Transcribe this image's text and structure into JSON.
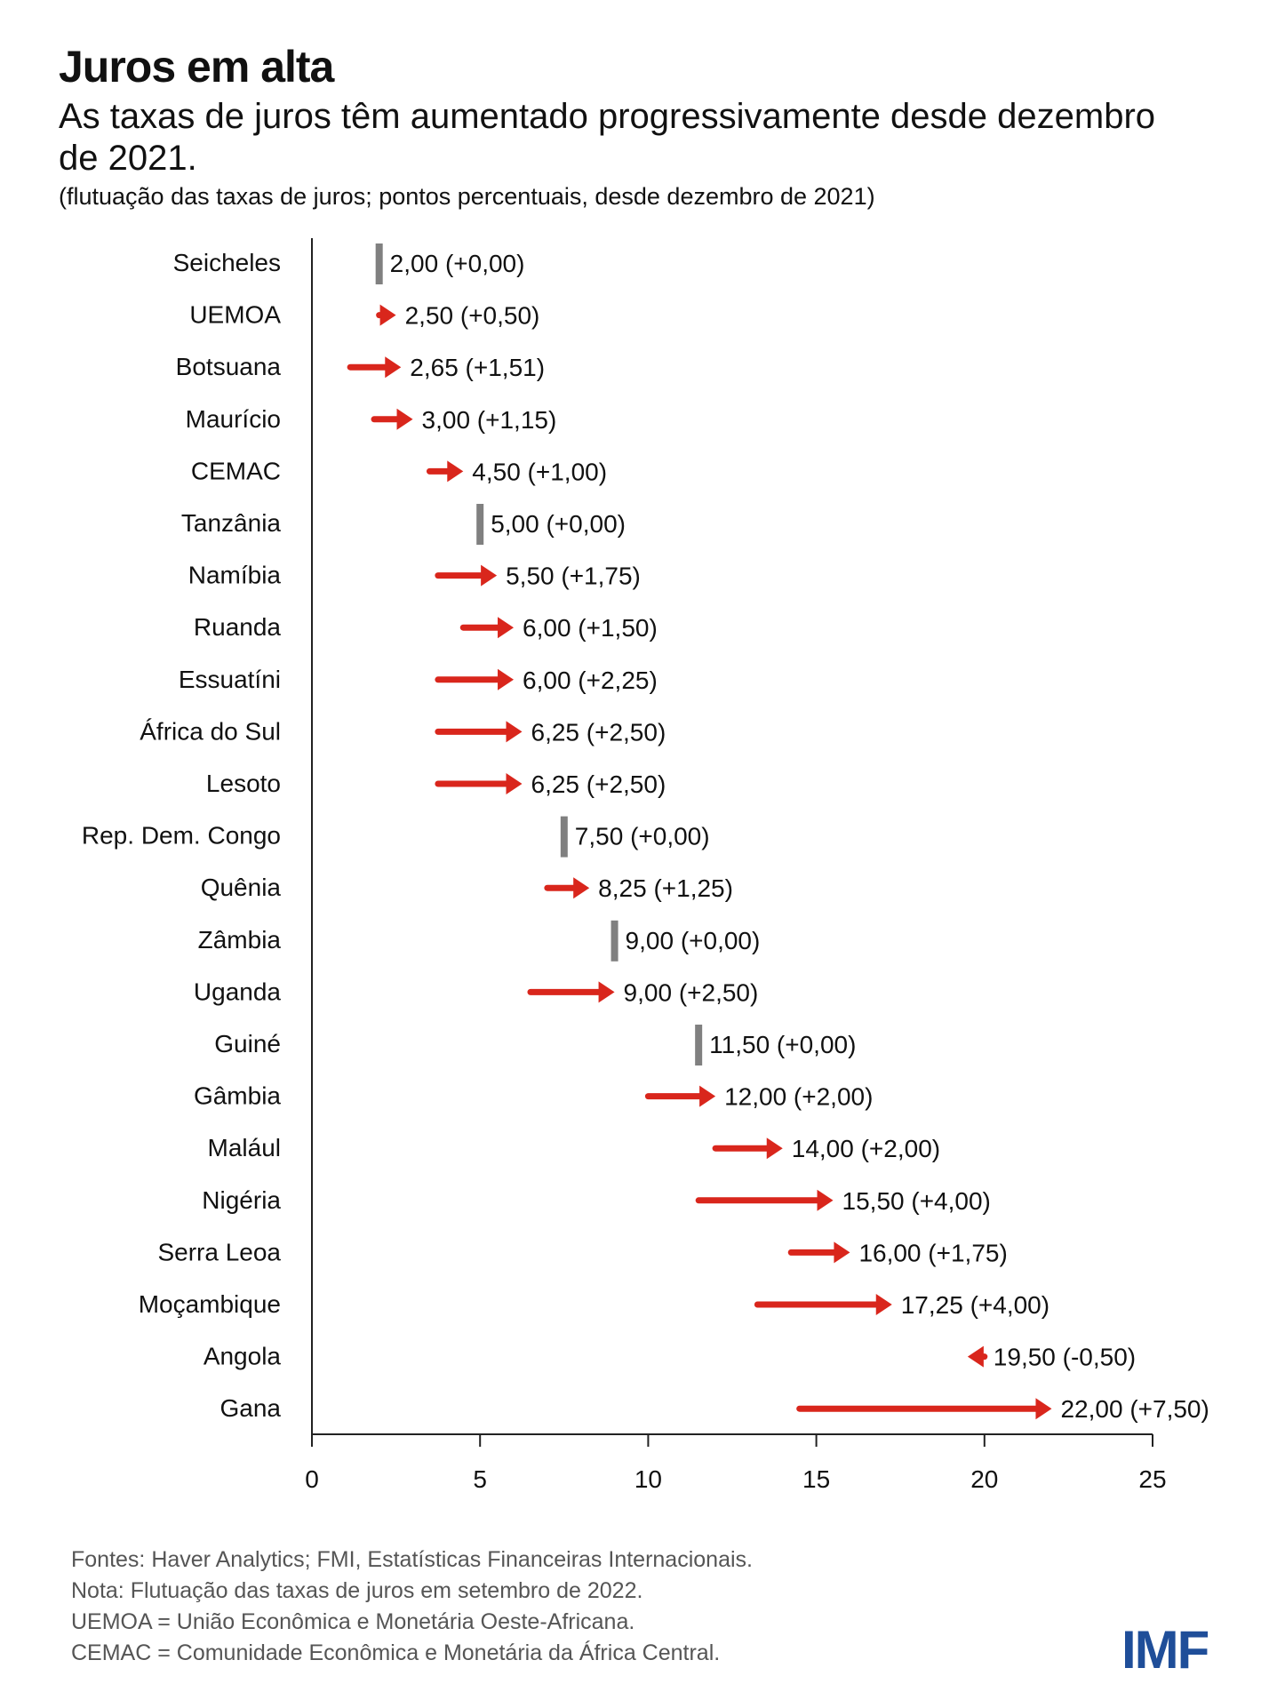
{
  "header": {
    "title": "Juros em alta",
    "subtitle": "As taxas de juros têm aumentado progressivamente desde dezembro de 2021.",
    "note": "(flutuação das taxas de juros; pontos percentuais, desde dezembro de 2021)"
  },
  "chart_data": {
    "type": "arrow",
    "title": "Juros em alta",
    "xlabel": "",
    "ylabel": "",
    "xlim": [
      0,
      25
    ],
    "xticks": [
      "0",
      "5",
      "10",
      "15",
      "20",
      "25"
    ],
    "xtick_values": [
      0,
      5,
      10,
      15,
      20,
      25
    ],
    "colors": {
      "increase": "#d9261c",
      "decrease": "#d9261c",
      "unchanged": "#808080"
    },
    "categories": [
      "Seicheles",
      "UEMOA",
      "Botsuana",
      "Maurício",
      "CEMAC",
      "Tanzânia",
      "Namíbia",
      "Ruanda",
      "Essuatíni",
      "África do Sul",
      "Lesoto",
      "Rep. Dem. Congo",
      "Quênia",
      "Zâmbia",
      "Uganda",
      "Guiné",
      "Gâmbia",
      "Malául",
      "Nigéria",
      "Serra Leoa",
      "Moçambique",
      "Angola",
      "Gana"
    ],
    "values": [
      2.0,
      2.5,
      2.65,
      3.0,
      4.5,
      5.0,
      5.5,
      6.0,
      6.0,
      6.25,
      6.25,
      7.5,
      8.25,
      9.0,
      9.0,
      11.5,
      12.0,
      14.0,
      15.5,
      16.0,
      17.25,
      19.5,
      22.0
    ],
    "changes": [
      0.0,
      0.5,
      1.51,
      1.15,
      1.0,
      0.0,
      1.75,
      1.5,
      2.25,
      2.5,
      2.5,
      0.0,
      1.25,
      0.0,
      2.5,
      0.0,
      2.0,
      2.0,
      4.0,
      1.75,
      4.0,
      -0.5,
      7.5
    ],
    "data_labels": [
      "2,00 (+0,00)",
      "2,50 (+0,50)",
      "2,65 (+1,51)",
      "3,00 (+1,15)",
      "4,50 (+1,00)",
      "5,00 (+0,00)",
      "5,50 (+1,75)",
      "6,00 (+1,50)",
      "6,00 (+2,25)",
      "6,25 (+2,50)",
      "6,25 (+2,50)",
      "7,50 (+0,00)",
      "8,25 (+1,25)",
      "9,00 (+0,00)",
      "9,00 (+2,50)",
      "11,50 (+0,00)",
      "12,00 (+2,00)",
      "14,00 (+2,00)",
      "15,50 (+4,00)",
      "16,00 (+1,75)",
      "17,25 (+4,00)",
      "19,50 (-0,50)",
      "22,00 (+7,50)"
    ]
  },
  "footer": {
    "lines": [
      "Fontes: Haver Analytics; FMI, Estatísticas Financeiras Internacionais.",
      "Nota: Flutuação das taxas de juros em setembro de 2022.",
      "UEMOA = União Econômica e Monetária Oeste-Africana.",
      "CEMAC = Comunidade Econômica e Monetária da África Central."
    ],
    "logo": "IMF"
  }
}
